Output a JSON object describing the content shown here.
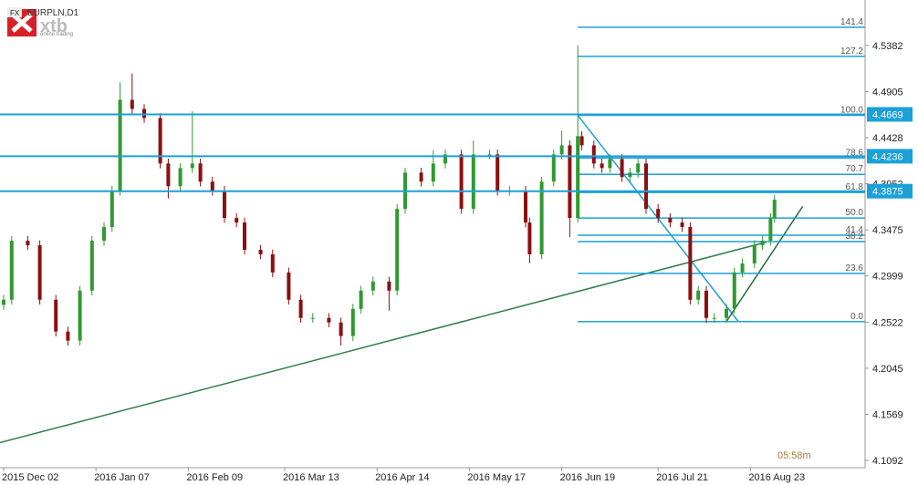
{
  "header": {
    "market": "FX",
    "symbol": "EURPLN,D1",
    "brand": "xtb",
    "tagline": "online trading"
  },
  "chart_data": {
    "type": "candlestick",
    "x": [
      0,
      2,
      6,
      9,
      13,
      16,
      19,
      22,
      25,
      27,
      29,
      32,
      35,
      39,
      41,
      44,
      47,
      49,
      52,
      55,
      58,
      60,
      64,
      67,
      71,
      74,
      77,
      81,
      84,
      87,
      89,
      92,
      96,
      98,
      100,
      104,
      107,
      110,
      114,
      117,
      121,
      123,
      126,
      130,
      131,
      134,
      137,
      139,
      141,
      143,
      144,
      147,
      149,
      151,
      154,
      156,
      158,
      160,
      163,
      166,
      169,
      171,
      173,
      175,
      177,
      180,
      182,
      184,
      187,
      189,
      191,
      192
    ],
    "open": [
      4.27,
      4.2753,
      4.3363,
      4.3316,
      4.2753,
      4.2424,
      4.233,
      4.2847,
      4.3363,
      4.3504,
      4.388,
      4.4819,
      4.4725,
      4.4631,
      4.4161,
      4.3927,
      4.4114,
      4.4161,
      4.3974,
      4.388,
      4.3598,
      4.3551,
      4.3269,
      4.3222,
      4.3035,
      4.2753,
      4.2565,
      4.2565,
      4.2518,
      4.2377,
      4.2659,
      4.2847,
      4.2941,
      4.2847,
      4.3692,
      4.4067,
      4.3974,
      4.4161,
      4.4255,
      4.3692,
      4.4255,
      4.4255,
      4.388,
      4.388,
      4.3551,
      4.3222,
      4.3974,
      4.4255,
      4.4349,
      4.3598,
      4.4443,
      4.4349,
      4.4161,
      4.4114,
      4.4208,
      4.4021,
      4.4067,
      4.4161,
      4.3692,
      4.3598,
      4.3551,
      4.3504,
      4.2753,
      4.2847,
      4.2565,
      4.2565,
      4.2659,
      4.3035,
      4.3128,
      4.3316,
      4.3363,
      4.3598
    ],
    "high": [
      4.2803,
      4.3413,
      4.3413,
      4.3366,
      4.2803,
      4.2474,
      4.2897,
      4.3413,
      4.3554,
      4.393,
      4.5,
      4.509,
      4.4775,
      4.4681,
      4.4211,
      4.4164,
      4.47,
      4.4211,
      4.4024,
      4.393,
      4.3648,
      4.3601,
      4.3319,
      4.3272,
      4.3085,
      4.2803,
      4.2615,
      4.2615,
      4.2568,
      4.2709,
      4.2897,
      4.2991,
      4.2991,
      4.3742,
      4.4117,
      4.4117,
      4.43,
      4.4305,
      4.4305,
      4.44,
      4.4305,
      4.4305,
      4.393,
      4.393,
      4.3601,
      4.4024,
      4.4305,
      4.45,
      4.4399,
      4.5382,
      4.4493,
      4.4399,
      4.4211,
      4.4258,
      4.4258,
      4.4117,
      4.4211,
      4.4211,
      4.3742,
      4.3648,
      4.36,
      4.3554,
      4.2897,
      4.2897,
      4.2615,
      4.2709,
      4.3085,
      4.3178,
      4.3366,
      4.3413,
      4.3648,
      4.3836
    ],
    "low": [
      4.265,
      4.2703,
      4.3266,
      4.2703,
      4.2374,
      4.228,
      4.228,
      4.2797,
      4.3313,
      4.3454,
      4.383,
      4.4675,
      4.4581,
      4.4111,
      4.38,
      4.3877,
      4.4064,
      4.3924,
      4.383,
      4.3548,
      4.3501,
      4.3219,
      4.3172,
      4.2985,
      4.2703,
      4.2515,
      4.2515,
      4.2468,
      4.228,
      4.2327,
      4.2609,
      4.2797,
      4.264,
      4.2797,
      4.3642,
      4.3924,
      4.3924,
      4.4111,
      4.3642,
      4.3642,
      4.4205,
      4.383,
      4.383,
      4.3501,
      4.313,
      4.3172,
      4.3924,
      4.4205,
      4.34,
      4.3548,
      4.4299,
      4.4111,
      4.4064,
      4.4064,
      4.3971,
      4.3971,
      4.4017,
      4.3642,
      4.3548,
      4.3501,
      4.3454,
      4.2703,
      4.2703,
      4.2515,
      4.2515,
      4.2515,
      4.2609,
      4.2985,
      4.3078,
      4.3266,
      4.3313,
      4.3548
    ],
    "close": [
      4.2753,
      4.3363,
      4.3316,
      4.2753,
      4.2424,
      4.233,
      4.2847,
      4.3363,
      4.3504,
      4.388,
      4.4819,
      4.4725,
      4.4631,
      4.4161,
      4.3927,
      4.4114,
      4.4161,
      4.3974,
      4.388,
      4.3598,
      4.3551,
      4.3269,
      4.3222,
      4.3035,
      4.2753,
      4.2565,
      4.2565,
      4.2518,
      4.2377,
      4.2659,
      4.2847,
      4.2941,
      4.2847,
      4.3692,
      4.4067,
      4.3974,
      4.4161,
      4.4255,
      4.3692,
      4.4255,
      4.4255,
      4.388,
      4.388,
      4.3551,
      4.3222,
      4.3974,
      4.4255,
      4.4349,
      4.3598,
      4.4443,
      4.4349,
      4.4161,
      4.4114,
      4.4208,
      4.4021,
      4.4067,
      4.4161,
      4.3692,
      4.3598,
      4.3551,
      4.3504,
      4.2753,
      4.2847,
      4.2565,
      4.2565,
      4.2659,
      4.3035,
      4.3128,
      4.3316,
      4.3363,
      4.3598,
      4.3786
    ],
    "up_color": "#2f9a2f",
    "down_color": "#8b1010",
    "xlim": [
      -0.91,
      214.55
    ],
    "ylim": [
      4.1017,
      4.5851
    ],
    "xticks": [
      {
        "value": 0,
        "label": "2015 Dec 02"
      },
      {
        "value": 23,
        "label": "2016 Jan 07"
      },
      {
        "value": 46,
        "label": "2016 Feb 09"
      },
      {
        "value": 70,
        "label": "2016 Mar 13"
      },
      {
        "value": 93,
        "label": "2016 Apr 14"
      },
      {
        "value": 116,
        "label": "2016 May 17"
      },
      {
        "value": 139,
        "label": "2016 Jun 19"
      },
      {
        "value": 163,
        "label": "2016 Jul 21"
      },
      {
        "value": 186,
        "label": "2016 Aug 23"
      }
    ],
    "yticks": [
      4.5382,
      4.4905,
      4.4428,
      4.3952,
      4.3475,
      4.2999,
      4.2522,
      4.2045,
      4.1569,
      4.1092
    ],
    "levels": [
      4.4669,
      4.4236,
      4.3875
    ],
    "level_color": "#1ca0d8",
    "fib_start": 143,
    "fib_levels": [
      141.4,
      127.2,
      {
        "value": 100,
        "label": "100.0"
      },
      78.6,
      70.7,
      61.8,
      {
        "value": 50,
        "label": "50.0"
      },
      41.4,
      38.2,
      23.6,
      {
        "value": 0,
        "label": "0.0"
      }
    ],
    "fib_prices": [
      4.557,
      4.5269,
      4.4659,
      4.4218,
      4.4049,
      4.3861,
      4.3598,
      4.342,
      4.3354,
      4.3025,
      4.2527
    ],
    "trendlines": [
      {
        "color": "#2e7d4a",
        "x": [
          -0.91,
          190
        ],
        "y": [
          4.1276,
          4.3349
        ]
      },
      {
        "color": "#1ca0d8",
        "x": [
          143,
          183
        ],
        "y": [
          4.4659,
          4.2527
        ]
      },
      {
        "color": "#1f6e2e",
        "x": [
          180,
          199
        ],
        "y": [
          4.2527,
          4.3717
        ]
      }
    ],
    "timer": "05:58m"
  }
}
